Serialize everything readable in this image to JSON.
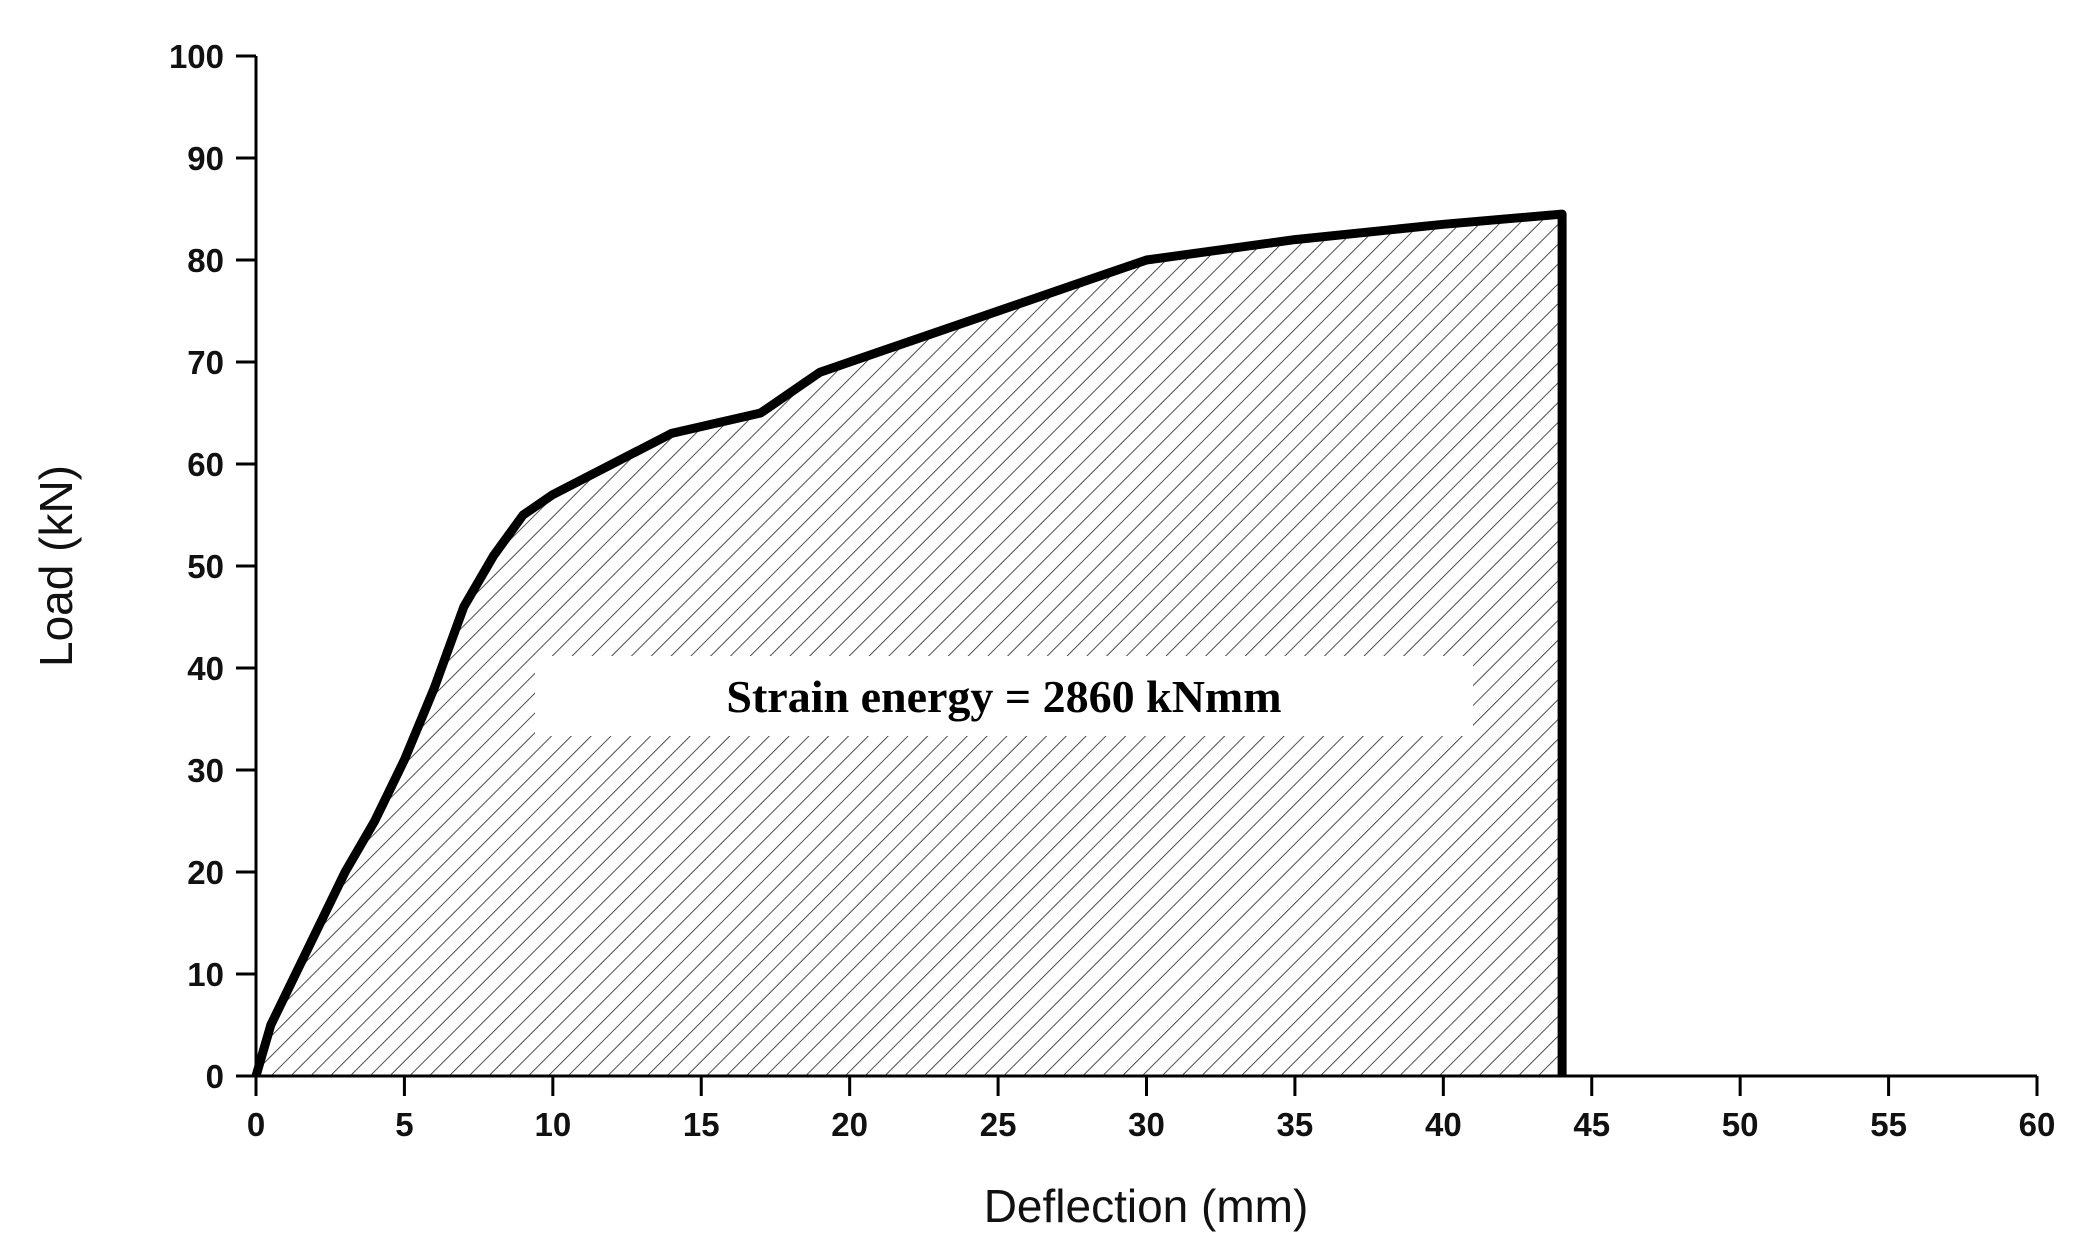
{
  "chart_data": {
    "type": "line",
    "x_label": "Deflection (mm)",
    "y_label": "Load (kN)",
    "annotation": "Strain energy = 2860 kNmm",
    "x": [
      0,
      0.5,
      1,
      2,
      3,
      4,
      5,
      6,
      7,
      8,
      9,
      10,
      12,
      14,
      17,
      19,
      22,
      25,
      28,
      30,
      35,
      40,
      44,
      44
    ],
    "series": [
      {
        "name": "Load",
        "color": "#000000",
        "values": [
          0,
          5,
          8,
          14,
          20,
          25,
          31,
          38,
          46,
          51,
          55,
          57,
          60,
          63,
          65,
          69,
          72,
          75,
          78,
          80,
          82,
          83.5,
          84.5,
          0
        ]
      }
    ],
    "xlim": [
      0,
      60
    ],
    "xticks": [
      0,
      5,
      10,
      15,
      20,
      25,
      30,
      35,
      40,
      45,
      50,
      55,
      60
    ],
    "ylim": [
      0,
      100
    ],
    "yticks": [
      0,
      10,
      20,
      30,
      40,
      50,
      60,
      70,
      80,
      90,
      100
    ],
    "fill": "hatch"
  }
}
